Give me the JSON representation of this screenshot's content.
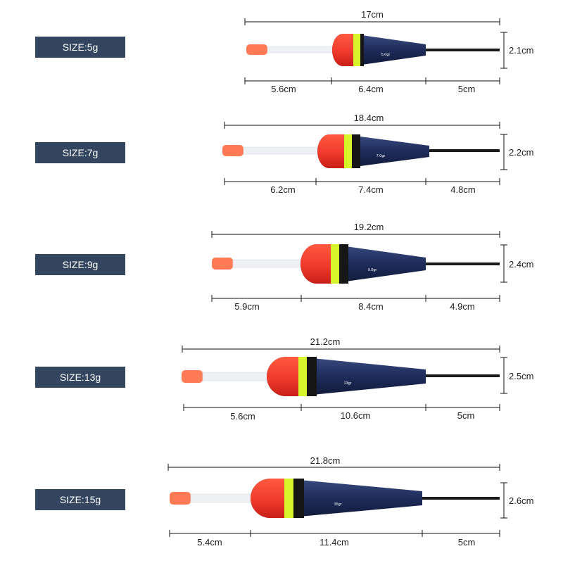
{
  "floats": [
    {
      "size": "SIZE:5g",
      "total": "17cm",
      "height": "2.1cm",
      "seg_antenna": "5.6cm",
      "seg_body": "6.4cm",
      "seg_stem": "5cm",
      "mark": "5.0gr"
    },
    {
      "size": "SIZE:7g",
      "total": "18.4cm",
      "height": "2.2cm",
      "seg_antenna": "6.2cm",
      "seg_body": "7.4cm",
      "seg_stem": "4.8cm",
      "mark": "7.0gr"
    },
    {
      "size": "SIZE:9g",
      "total": "19.2cm",
      "height": "2.4cm",
      "seg_antenna": "5.9cm",
      "seg_body": "8.4cm",
      "seg_stem": "4.9cm",
      "mark": "9.0gr"
    },
    {
      "size": "SIZE:13g",
      "total": "21.2cm",
      "height": "2.5cm",
      "seg_antenna": "5.6cm",
      "seg_body": "10.6cm",
      "seg_stem": "5cm",
      "mark": "13gr"
    },
    {
      "size": "SIZE:15g",
      "total": "21.8cm",
      "height": "2.6cm",
      "seg_antenna": "5.4cm",
      "seg_body": "11.4cm",
      "seg_stem": "5cm",
      "mark": "15gr"
    }
  ],
  "colors": {
    "label_bg": "#34465f",
    "float_red": "#f03a2c",
    "float_band": "#d7f52a",
    "float_navy": "#1e2c5a",
    "float_tip": "#ff7a55",
    "stem": "#1a1a1a"
  }
}
